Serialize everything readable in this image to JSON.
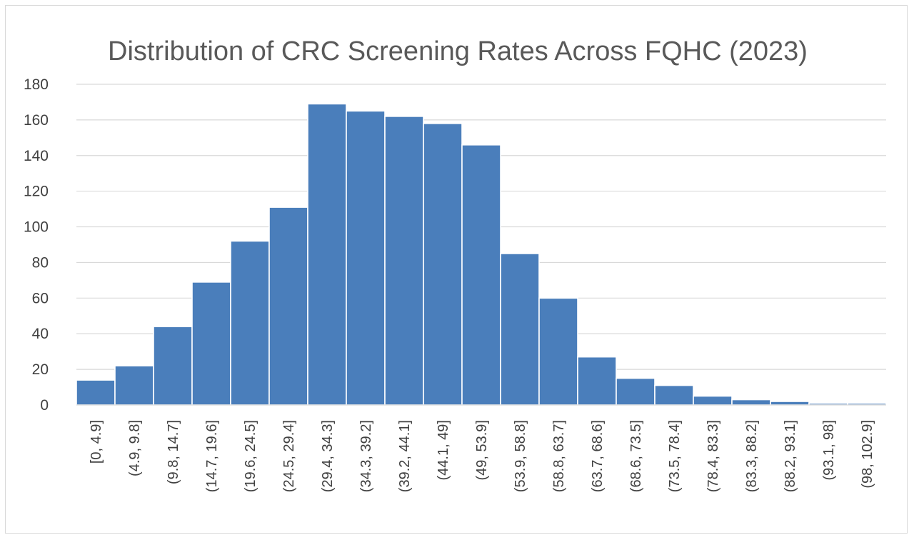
{
  "chart_data": {
    "type": "bar",
    "title": "Distribution of CRC Screening Rates Across FQHC (2023)",
    "xlabel": "",
    "ylabel": "",
    "categories": [
      "[0, 4.9]",
      "(4.9, 9.8]",
      "(9.8, 14.7]",
      "(14.7, 19.6]",
      "(19.6, 24.5]",
      "(24.5, 29.4]",
      "(29.4, 34.3]",
      "(34.3, 39.2]",
      "(39.2, 44.1]",
      "(44.1, 49]",
      "(49, 53.9]",
      "(53.9, 58.8]",
      "(58.8, 63.7]",
      "(63.7, 68.6]",
      "(68.6, 73.5]",
      "(73.5, 78.4]",
      "(78.4, 83.3]",
      "(83.3, 88.2]",
      "(88.2, 93.1]",
      "(93.1, 98]",
      "(98, 102.9]"
    ],
    "values": [
      14,
      22,
      44,
      69,
      92,
      111,
      169,
      165,
      162,
      158,
      146,
      85,
      60,
      27,
      15,
      11,
      5,
      3,
      2,
      1,
      1
    ],
    "ylim": [
      0,
      180
    ],
    "yticks": [
      0,
      20,
      40,
      60,
      80,
      100,
      120,
      140,
      160,
      180
    ],
    "grid": true,
    "bar_color": "#4a7ebb",
    "gridline_color": "#d9d9d9"
  }
}
